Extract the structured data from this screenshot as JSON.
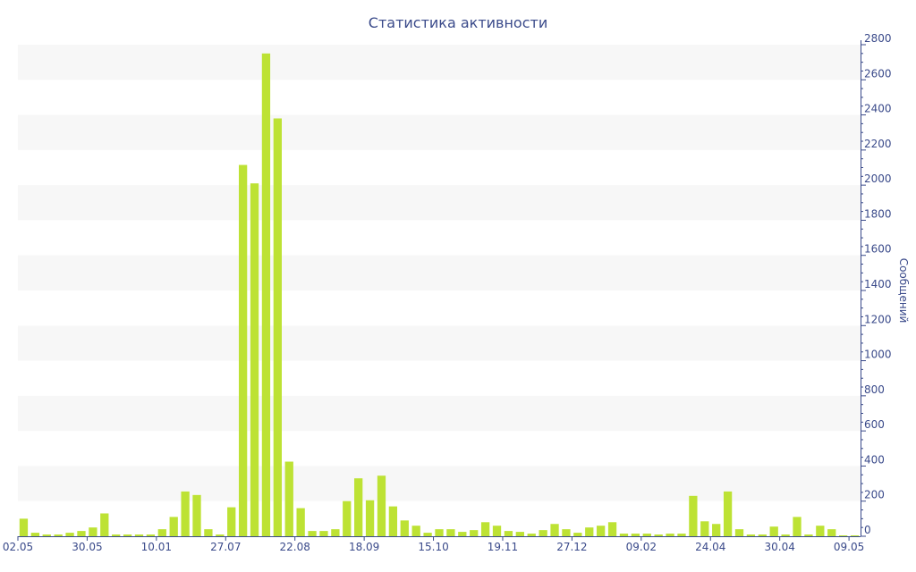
{
  "chart_data": {
    "type": "bar",
    "title": "Статистика активности",
    "xlabel": "",
    "ylabel": "Сообщений",
    "ylim": [
      0,
      2800
    ],
    "y_ticks": [
      0,
      200,
      400,
      600,
      800,
      1000,
      1200,
      1400,
      1600,
      1800,
      2000,
      2200,
      2400,
      2600,
      2800
    ],
    "y_axis_side": "right",
    "grid": "alternating horizontal bands",
    "colors": {
      "bar": "#bde234",
      "axis": "#3a4a8a",
      "band": "#f7f7f7"
    },
    "x_tick_labels": [
      {
        "index": 0,
        "label": "02.05"
      },
      {
        "index": 6,
        "label": "30.05"
      },
      {
        "index": 12,
        "label": "10.01"
      },
      {
        "index": 18,
        "label": "27.07"
      },
      {
        "index": 24,
        "label": "22.08"
      },
      {
        "index": 30,
        "label": "18.09"
      },
      {
        "index": 36,
        "label": "15.10"
      },
      {
        "index": 42,
        "label": "19.11"
      },
      {
        "index": 48,
        "label": "27.12"
      },
      {
        "index": 54,
        "label": "09.02"
      },
      {
        "index": 60,
        "label": "24.04"
      },
      {
        "index": 66,
        "label": "30.04"
      },
      {
        "index": 72,
        "label": "09.05"
      }
    ],
    "values": [
      100,
      20,
      10,
      10,
      20,
      30,
      50,
      130,
      10,
      10,
      10,
      10,
      40,
      110,
      255,
      235,
      40,
      10,
      165,
      2115,
      2010,
      2750,
      2380,
      425,
      160,
      30,
      30,
      40,
      200,
      330,
      205,
      345,
      170,
      90,
      60,
      20,
      40,
      40,
      25,
      35,
      80,
      60,
      30,
      25,
      15,
      35,
      70,
      40,
      20,
      50,
      60,
      80,
      15,
      15,
      15,
      10,
      15,
      15,
      230,
      85,
      70,
      255,
      40,
      10,
      10,
      55,
      10,
      110,
      10,
      60,
      40,
      5,
      5
    ]
  }
}
